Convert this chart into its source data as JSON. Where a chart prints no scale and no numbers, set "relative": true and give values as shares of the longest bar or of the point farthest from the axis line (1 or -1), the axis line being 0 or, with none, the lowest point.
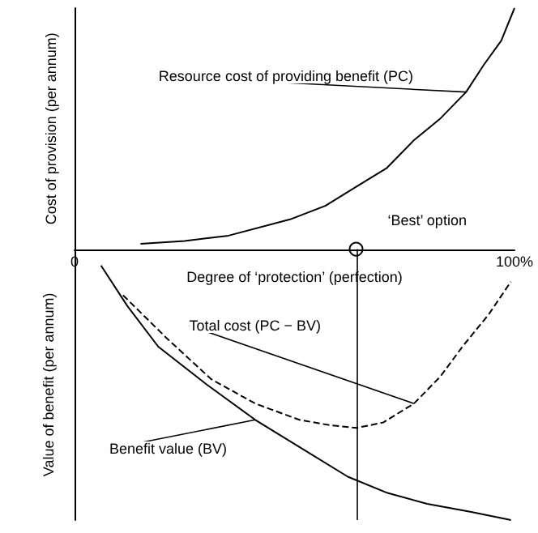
{
  "chart_data": {
    "type": "line",
    "relative": true,
    "ylabel": "Cost of provision (per annum)",
    "xlabel": "Degree of ‘protection’ (perfection)",
    "xlim": [
      0,
      100
    ],
    "xticks": [
      {
        "value": 0,
        "label": "0"
      },
      {
        "value": 100,
        "label": "100%"
      }
    ],
    "marker": "none",
    "annotations": [
      {
        "text": "‘Best’ option",
        "x": 64,
        "y": 0
      },
      "Value of benefit (per annum)"
    ],
    "ref_lines": [
      {
        "axis": "x",
        "value": 64,
        "color": "#000000",
        "line_style": "solid"
      }
    ],
    "series": [
      {
        "name": "Resource cost of providing benefit (PC)",
        "color": "#000000",
        "line_style": "solid",
        "x": [
          15,
          25,
          35,
          49,
          57,
          64,
          71,
          77,
          83,
          89,
          93,
          97,
          100
        ],
        "values": [
          0.02,
          0.03,
          0.05,
          0.11,
          0.16,
          0.23,
          0.3,
          0.4,
          0.48,
          0.58,
          0.68,
          0.77,
          0.89
        ]
      },
      {
        "name": "Total cost (PC − BV)",
        "color": "#000000",
        "line_style": "dashed",
        "x": [
          11,
          21,
          31,
          41,
          51,
          58,
          64,
          70,
          77,
          83,
          88,
          94,
          99
        ],
        "values": [
          -0.17,
          -0.33,
          -0.48,
          -0.57,
          -0.63,
          -0.65,
          -0.66,
          -0.64,
          -0.57,
          -0.47,
          -0.36,
          -0.24,
          -0.12
        ]
      },
      {
        "name": "Benefit value (BV)",
        "color": "#000000",
        "line_style": "solid",
        "x": [
          6,
          12,
          19,
          30,
          41,
          52,
          62,
          71,
          80,
          90,
          99
        ],
        "values": [
          -0.06,
          -0.21,
          -0.36,
          -0.5,
          -0.63,
          -0.74,
          -0.84,
          -0.9,
          -0.94,
          -0.97,
          -1
        ]
      }
    ]
  }
}
